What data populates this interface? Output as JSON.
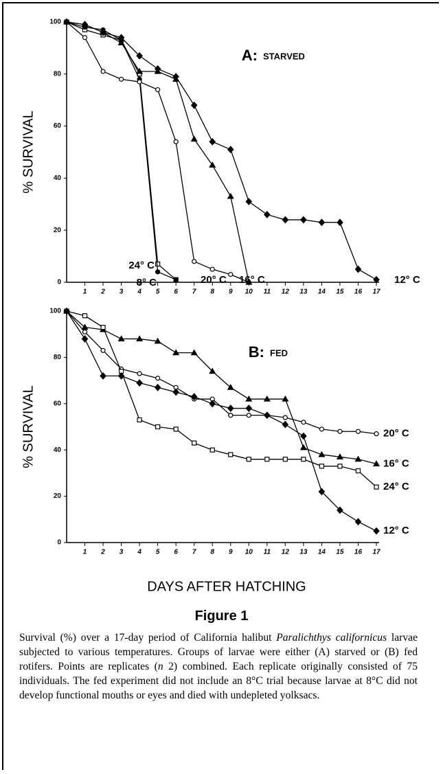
{
  "chart_data": [
    {
      "type": "line",
      "panel_label": "A:",
      "title": "STARVED",
      "ylabel": "% SURVIVAL",
      "x": [
        0,
        1,
        2,
        3,
        4,
        5,
        6,
        7,
        8,
        9,
        10,
        11,
        12,
        13,
        14,
        15,
        16,
        17
      ],
      "xlim": [
        0,
        17
      ],
      "xticks": [
        1,
        2,
        3,
        4,
        5,
        6,
        7,
        8,
        9,
        10,
        11,
        12,
        13,
        14,
        15,
        16,
        17
      ],
      "ylim": [
        0,
        100
      ],
      "yticks": [
        0,
        20,
        40,
        60,
        80,
        100
      ],
      "series": [
        {
          "name": "24° C",
          "marker": "square-open",
          "color": "#000000",
          "values": [
            100,
            97,
            95,
            93,
            80,
            7,
            1,
            null,
            null,
            null,
            null,
            null,
            null,
            null,
            null,
            null,
            null,
            null
          ]
        },
        {
          "name": "8° C",
          "marker": "circle-filled",
          "color": "#000000",
          "values": [
            100,
            98,
            97,
            93,
            78,
            4,
            1,
            null,
            null,
            null,
            null,
            null,
            null,
            null,
            null,
            null,
            null,
            null
          ]
        },
        {
          "name": "20° C",
          "marker": "circle-open",
          "color": "#000000",
          "values": [
            100,
            94,
            81,
            78,
            77,
            74,
            54,
            8,
            5,
            3,
            0,
            null,
            null,
            null,
            null,
            null,
            null,
            null
          ]
        },
        {
          "name": "16° C",
          "marker": "triangle-filled",
          "color": "#000000",
          "values": [
            100,
            99,
            96,
            92,
            81,
            81,
            78,
            55,
            45,
            33,
            0,
            null,
            null,
            null,
            null,
            null,
            null,
            null
          ]
        },
        {
          "name": "12° C",
          "marker": "diamond-filled",
          "color": "#000000",
          "values": [
            100,
            99,
            96,
            94,
            87,
            82,
            79,
            68,
            54,
            51,
            31,
            26,
            24,
            24,
            23,
            23,
            5,
            1
          ]
        }
      ]
    },
    {
      "type": "line",
      "panel_label": "B:",
      "title": "FED",
      "ylabel": "% SURVIVAL",
      "x": [
        0,
        1,
        2,
        3,
        4,
        5,
        6,
        7,
        8,
        9,
        10,
        11,
        12,
        13,
        14,
        15,
        16,
        17
      ],
      "xlim": [
        0,
        17
      ],
      "xticks": [
        1,
        2,
        3,
        4,
        5,
        6,
        7,
        8,
        9,
        10,
        11,
        12,
        13,
        14,
        15,
        16,
        17
      ],
      "ylim": [
        0,
        100
      ],
      "yticks": [
        0,
        20,
        40,
        60,
        80,
        100
      ],
      "series": [
        {
          "name": "20° C",
          "marker": "circle-open",
          "color": "#000000",
          "values": [
            100,
            91,
            83,
            75,
            73,
            71,
            67,
            62,
            62,
            55,
            55,
            55,
            54,
            52,
            49,
            48,
            48,
            47
          ]
        },
        {
          "name": "16° C",
          "marker": "triangle-filled",
          "color": "#000000",
          "values": [
            100,
            93,
            92,
            88,
            88,
            87,
            82,
            82,
            74,
            67,
            62,
            62,
            62,
            41,
            38,
            37,
            36,
            34
          ]
        },
        {
          "name": "24° C",
          "marker": "square-open",
          "color": "#000000",
          "values": [
            100,
            98,
            93,
            74,
            53,
            50,
            49,
            43,
            40,
            38,
            36,
            36,
            36,
            36,
            33,
            33,
            31,
            24
          ]
        },
        {
          "name": "12° C",
          "marker": "diamond-filled",
          "color": "#000000",
          "values": [
            100,
            88,
            72,
            72,
            69,
            67,
            65,
            63,
            60,
            58,
            58,
            55,
            51,
            46,
            22,
            14,
            9,
            5
          ]
        }
      ]
    }
  ],
  "xlabel": "DAYS AFTER HATCHING",
  "figure_label": "Figure 1",
  "caption": [
    {
      "text": "Survival (%) over a 17-day period of California halibut ",
      "italic": false
    },
    {
      "text": "Paralichthys californicus",
      "italic": true
    },
    {
      "text": " larvae subjected to various temperatures. Groups of larvae were either (A) starved or (B) fed rotifers. Points are replicates (",
      "italic": false
    },
    {
      "text": "n",
      "italic": true
    },
    {
      "text": " 2) combined. Each replicate originally consisted of 75 individuals. The fed experiment did not include an 8°C trial because larvae at 8°C did not develop functional mouths or eyes and died with undepleted yolksacs.",
      "italic": false
    }
  ]
}
